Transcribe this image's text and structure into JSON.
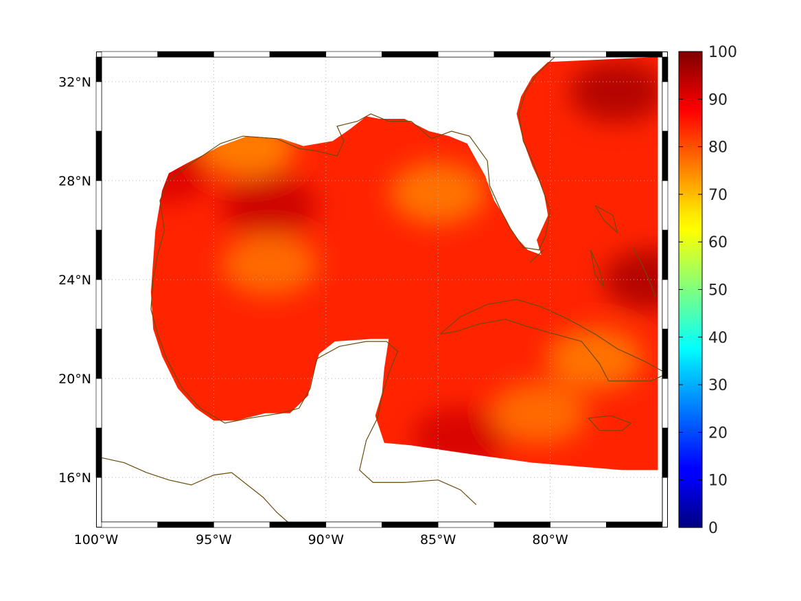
{
  "map": {
    "projection": "equidistant cylindrical",
    "lon_range": [
      -100,
      -75
    ],
    "lat_range": [
      14.2,
      33
    ],
    "graticule": "dotted",
    "frame_style": "black-and-white checkered border",
    "coastline_color": "#6b4a0a",
    "no_data_color": "#ffffff",
    "lon_ticks": [
      {
        "value": -100,
        "label": "100°W"
      },
      {
        "value": -95,
        "label": "95°W"
      },
      {
        "value": -90,
        "label": "90°W"
      },
      {
        "value": -85,
        "label": "85°W"
      },
      {
        "value": -80,
        "label": "80°W"
      }
    ],
    "lat_ticks": [
      {
        "value": 32,
        "label": "32°N"
      },
      {
        "value": 28,
        "label": "28°N"
      },
      {
        "value": 24,
        "label": "24°N"
      },
      {
        "value": 20,
        "label": "20°N"
      },
      {
        "value": 16,
        "label": "16°N"
      }
    ]
  },
  "field": {
    "description_of_extent": "gridded values cover the Gulf of Mexico and the Caribbean/western Atlantic east of Florida",
    "typical_range": [
      70,
      95
    ],
    "hot_spots": [
      {
        "lon": -92.5,
        "lat": 27.0,
        "value": 93
      },
      {
        "lon": -77.0,
        "lat": 31.6,
        "value": 96
      },
      {
        "lon": -75.5,
        "lat": 24.0,
        "value": 96
      },
      {
        "lon": -84.0,
        "lat": 17.6,
        "value": 92
      },
      {
        "lon": -97.2,
        "lat": 28.3,
        "value": 91
      }
    ],
    "cool_spots": [
      {
        "lon": -85.0,
        "lat": 27.5,
        "value": 75
      },
      {
        "lon": -92.5,
        "lat": 24.6,
        "value": 76
      },
      {
        "lon": -93.5,
        "lat": 29.4,
        "value": 74
      },
      {
        "lon": -80.5,
        "lat": 18.6,
        "value": 76
      },
      {
        "lon": -78.0,
        "lat": 20.8,
        "value": 75
      }
    ]
  },
  "colorbar": {
    "min": 0,
    "max": 100,
    "colormap": "jet",
    "ticks": [
      {
        "value": 100,
        "label": "100"
      },
      {
        "value": 90,
        "label": "90"
      },
      {
        "value": 80,
        "label": "80"
      },
      {
        "value": 70,
        "label": "70"
      },
      {
        "value": 60,
        "label": "60"
      },
      {
        "value": 50,
        "label": "50"
      },
      {
        "value": 40,
        "label": "40"
      },
      {
        "value": 30,
        "label": "30"
      },
      {
        "value": 20,
        "label": "20"
      },
      {
        "value": 10,
        "label": "10"
      },
      {
        "value": 0,
        "label": "0"
      }
    ]
  }
}
